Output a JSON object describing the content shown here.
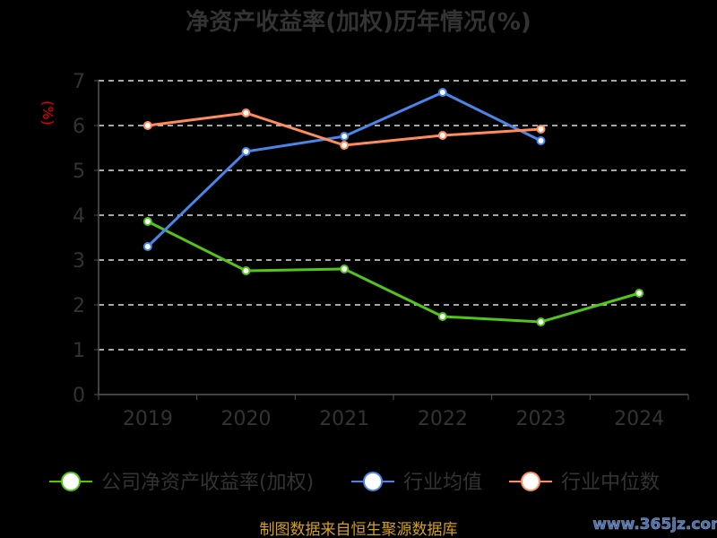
{
  "chart_data": {
    "type": "line",
    "title": "净资产收益率(加权)历年情况(%)",
    "ylabel": "(%)",
    "xlabel": "",
    "categories": [
      "2019",
      "2020",
      "2021",
      "2022",
      "2023",
      "2024"
    ],
    "ylim": [
      0,
      7
    ],
    "yticks": [
      "0",
      "1",
      "2",
      "3",
      "4",
      "5",
      "6",
      "7"
    ],
    "grid": true,
    "legend_position": "bottom",
    "series": [
      {
        "name": "公司净资产收益率(加权)",
        "color": "#52c41a",
        "values": [
          3.86,
          2.76,
          2.8,
          1.74,
          1.62,
          2.26
        ]
      },
      {
        "name": "行业均值",
        "color": "#4a86e8",
        "values": [
          3.3,
          5.42,
          5.76,
          6.74,
          5.66,
          null
        ]
      },
      {
        "name": "行业中位数",
        "color": "#ff8c5a",
        "values": [
          6.0,
          6.28,
          5.56,
          5.78,
          5.92,
          null
        ]
      }
    ]
  },
  "footer": {
    "source": "制图数据来自恒生聚源数据库",
    "watermark": "www.365jz.com"
  }
}
